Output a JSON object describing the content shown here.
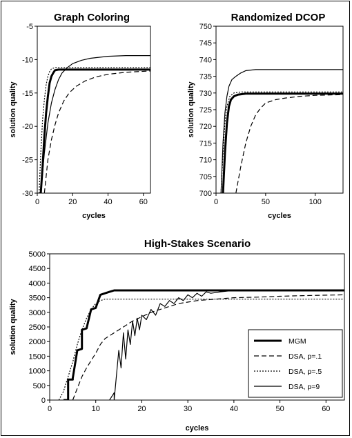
{
  "chart_data": [
    {
      "type": "line",
      "title": "Graph Coloring",
      "xlabel": "cycles",
      "ylabel": "solution quality",
      "xlim": [
        0,
        64
      ],
      "ylim": [
        -30,
        -5
      ],
      "xticks": [
        0,
        20,
        40,
        60
      ],
      "yticks": [
        -30,
        -25,
        -20,
        -15,
        -10,
        -5
      ],
      "grid": false,
      "series": [
        {
          "style": "mgm",
          "points": [
            [
              2,
              -30
            ],
            [
              3,
              -26
            ],
            [
              4,
              -21.5
            ],
            [
              5,
              -18
            ],
            [
              6,
              -15.5
            ],
            [
              7,
              -13.5
            ],
            [
              8,
              -12.5
            ],
            [
              9,
              -12
            ],
            [
              10,
              -11.6
            ],
            [
              12,
              -11.5
            ],
            [
              64,
              -11.5
            ]
          ]
        },
        {
          "style": "dsa1",
          "points": [
            [
              4,
              -30
            ],
            [
              6,
              -25
            ],
            [
              8,
              -22
            ],
            [
              10,
              -19.8
            ],
            [
              12,
              -18
            ],
            [
              15,
              -16.2
            ],
            [
              18,
              -15
            ],
            [
              22,
              -14
            ],
            [
              27,
              -13.2
            ],
            [
              33,
              -12.6
            ],
            [
              40,
              -12.2
            ],
            [
              50,
              -11.9
            ],
            [
              64,
              -11.7
            ]
          ]
        },
        {
          "style": "dsa5",
          "points": [
            [
              1,
              -30
            ],
            [
              2,
              -24
            ],
            [
              3,
              -19
            ],
            [
              4,
              -16
            ],
            [
              5,
              -13.8
            ],
            [
              6,
              -12.5
            ],
            [
              7,
              -11.8
            ],
            [
              8,
              -11.4
            ],
            [
              10,
              -11.2
            ],
            [
              64,
              -11.2
            ]
          ]
        },
        {
          "style": "dsa9",
          "points": [
            [
              2,
              -30
            ],
            [
              4,
              -24
            ],
            [
              6,
              -19.5
            ],
            [
              8,
              -16.5
            ],
            [
              10,
              -14.5
            ],
            [
              12,
              -13
            ],
            [
              14,
              -12
            ],
            [
              17,
              -11.2
            ],
            [
              20,
              -10.6
            ],
            [
              25,
              -10.1
            ],
            [
              30,
              -9.8
            ],
            [
              40,
              -9.5
            ],
            [
              50,
              -9.4
            ],
            [
              64,
              -9.4
            ]
          ]
        }
      ]
    },
    {
      "type": "line",
      "title": "Randomized DCOP",
      "xlabel": "cycles",
      "ylabel": "solution quality",
      "xlim": [
        0,
        128
      ],
      "ylim": [
        700,
        750
      ],
      "xticks": [
        0,
        50,
        100
      ],
      "yticks": [
        700,
        705,
        710,
        715,
        720,
        725,
        730,
        735,
        740,
        745,
        750
      ],
      "grid": false,
      "series": [
        {
          "style": "mgm",
          "points": [
            [
              7,
              700
            ],
            [
              9,
              712
            ],
            [
              11,
              721
            ],
            [
              13,
              726
            ],
            [
              15,
              728
            ],
            [
              18,
              729
            ],
            [
              22,
              729.5
            ],
            [
              30,
              729.8
            ],
            [
              128,
              729.8
            ]
          ]
        },
        {
          "style": "dsa1",
          "points": [
            [
              20,
              700
            ],
            [
              25,
              708
            ],
            [
              30,
              715
            ],
            [
              35,
              720
            ],
            [
              40,
              723.5
            ],
            [
              45,
              725.5
            ],
            [
              50,
              727
            ],
            [
              60,
              728
            ],
            [
              70,
              728.5
            ],
            [
              85,
              729
            ],
            [
              100,
              729.3
            ],
            [
              128,
              729.5
            ]
          ]
        },
        {
          "style": "dsa5",
          "points": [
            [
              5,
              700
            ],
            [
              7,
              712
            ],
            [
              9,
              721
            ],
            [
              11,
              726
            ],
            [
              14,
              729
            ],
            [
              18,
              730
            ],
            [
              25,
              730.3
            ],
            [
              128,
              730.3
            ]
          ]
        },
        {
          "style": "dsa9",
          "points": [
            [
              5,
              700
            ],
            [
              7,
              715
            ],
            [
              9,
              724
            ],
            [
              11,
              729
            ],
            [
              13,
              732
            ],
            [
              16,
              734
            ],
            [
              20,
              735
            ],
            [
              25,
              736
            ],
            [
              30,
              736.7
            ],
            [
              40,
              737
            ],
            [
              128,
              737
            ]
          ]
        }
      ]
    },
    {
      "type": "line",
      "title": "High-Stakes Scenario",
      "xlabel": "cycles",
      "ylabel": "solution quality",
      "xlim": [
        0,
        64
      ],
      "ylim": [
        0,
        5000
      ],
      "xticks": [
        0,
        10,
        20,
        30,
        40,
        50,
        60
      ],
      "yticks": [
        0,
        500,
        1000,
        1500,
        2000,
        2500,
        3000,
        3500,
        4000,
        4500,
        5000
      ],
      "grid": false,
      "legend": {
        "position": "bottom-right",
        "entries": [
          "MGM",
          "DSA, p=.1",
          "DSA, p=.5",
          "DSA, p=9"
        ]
      },
      "series": [
        {
          "name": "MGM",
          "style": "mgm",
          "points": [
            [
              3,
              0
            ],
            [
              4,
              0
            ],
            [
              4,
              700
            ],
            [
              5,
              700
            ],
            [
              5,
              750
            ],
            [
              6,
              1700
            ],
            [
              7,
              1750
            ],
            [
              7,
              2400
            ],
            [
              8,
              2450
            ],
            [
              9,
              3100
            ],
            [
              10,
              3150
            ],
            [
              11,
              3600
            ],
            [
              12,
              3650
            ],
            [
              13,
              3700
            ],
            [
              14,
              3750
            ],
            [
              64,
              3750
            ]
          ]
        },
        {
          "name": "DSA, p=.1",
          "style": "dsa1",
          "points": [
            [
              5,
              0
            ],
            [
              6,
              400
            ],
            [
              7,
              800
            ],
            [
              8,
              1100
            ],
            [
              9,
              1350
            ],
            [
              10,
              1600
            ],
            [
              11,
              1900
            ],
            [
              12,
              2100
            ],
            [
              14,
              2300
            ],
            [
              16,
              2500
            ],
            [
              18,
              2700
            ],
            [
              20,
              2850
            ],
            [
              22,
              3000
            ],
            [
              25,
              3150
            ],
            [
              28,
              3300
            ],
            [
              32,
              3400
            ],
            [
              36,
              3450
            ],
            [
              40,
              3500
            ],
            [
              45,
              3520
            ],
            [
              50,
              3550
            ],
            [
              55,
              3570
            ],
            [
              64,
              3600
            ]
          ]
        },
        {
          "name": "DSA, p=.5",
          "style": "dsa5",
          "points": [
            [
              2,
              0
            ],
            [
              3,
              300
            ],
            [
              4,
              800
            ],
            [
              5,
              1300
            ],
            [
              6,
              1900
            ],
            [
              7,
              2400
            ],
            [
              8,
              2800
            ],
            [
              9,
              3100
            ],
            [
              10,
              3300
            ],
            [
              11,
              3400
            ],
            [
              12,
              3450
            ],
            [
              13,
              3450
            ],
            [
              64,
              3450
            ]
          ]
        },
        {
          "name": "DSA, p=9",
          "style": "dsa9",
          "points": [
            [
              13,
              0
            ],
            [
              14,
              250
            ],
            [
              14,
              0
            ],
            [
              15,
              1700
            ],
            [
              15.5,
              1100
            ],
            [
              16,
              2300
            ],
            [
              16.5,
              1400
            ],
            [
              17,
              2400
            ],
            [
              17.5,
              1900
            ],
            [
              18,
              2700
            ],
            [
              18.5,
              2200
            ],
            [
              19,
              2800
            ],
            [
              19.5,
              2400
            ],
            [
              20,
              2900
            ],
            [
              21,
              2750
            ],
            [
              22,
              3100
            ],
            [
              23,
              2900
            ],
            [
              24,
              3300
            ],
            [
              25,
              3200
            ],
            [
              26,
              3400
            ],
            [
              27,
              3300
            ],
            [
              28,
              3500
            ],
            [
              29,
              3400
            ],
            [
              30,
              3600
            ],
            [
              31,
              3500
            ],
            [
              32,
              3650
            ],
            [
              33,
              3550
            ],
            [
              34,
              3700
            ],
            [
              35,
              3650
            ],
            [
              37,
              3700
            ],
            [
              40,
              3750
            ],
            [
              64,
              3750
            ]
          ]
        }
      ]
    }
  ]
}
